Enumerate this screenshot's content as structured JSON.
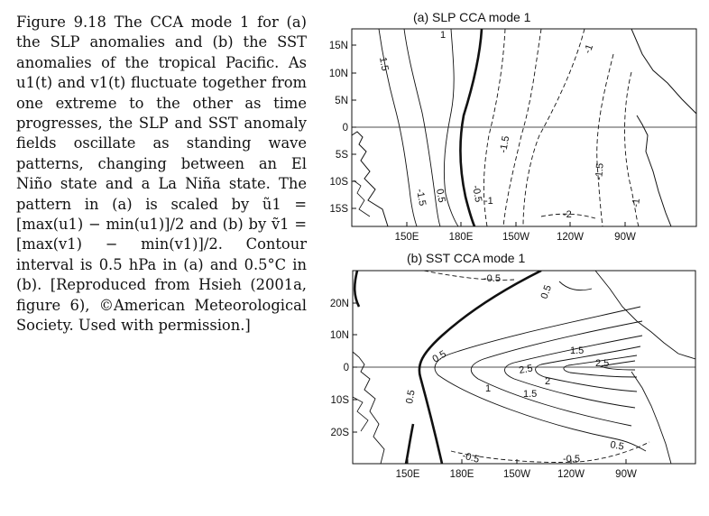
{
  "caption": {
    "figure_label": "Figure 9.18",
    "text": "The CCA mode 1 for (a) the SLP anomalies and (b) the SST anomalies of the tropical Pacific. As u1(t) and v1(t) fluctuate together from one extreme to the other as time progresses, the SLP and SST anomaly fields oscillate as standing wave patterns, changing between an El Niño state and a La Niña state. The pattern in (a) is scaled by ũ1 = [max(u1) − min(u1)]/2 and (b) by ṽ1 = [max(v1) − min(v1)]/2. Contour interval is 0.5 hPa in (a) and 0.5°C in (b). [Reproduced from Hsieh (2001a, figure 6), ©American Meteorological Society. Used with permission.]"
  },
  "chart_data": [
    {
      "type": "contour",
      "title": "(a)   SLP CCA mode 1",
      "x_ticks": [
        "150E",
        "180E",
        "150W",
        "120W",
        "90W"
      ],
      "y_ticks": [
        "15N",
        "10N",
        "5N",
        "0",
        "5S",
        "10S",
        "15S"
      ],
      "contour_interval": 0.5,
      "contour_labels": [
        "1.5",
        "1",
        "0.5",
        "-0.5",
        "-1",
        "-1.5",
        "-1.5",
        "-1",
        "-2",
        "-1.5",
        "-1"
      ]
    },
    {
      "type": "contour",
      "title": "(b)   SST CCA mode 1",
      "x_ticks": [
        "150E",
        "180E",
        "150W",
        "120W",
        "90W"
      ],
      "y_ticks": [
        "20N",
        "10N",
        "0",
        "10S",
        "20S"
      ],
      "contour_interval": 0.5,
      "contour_labels": [
        "-0.5",
        "0.5",
        "0.5",
        "1.5",
        "2.5",
        "2.5",
        "2",
        "1",
        "1.5",
        "0.5",
        "-0.5",
        "-0.5",
        "0.5"
      ]
    }
  ]
}
